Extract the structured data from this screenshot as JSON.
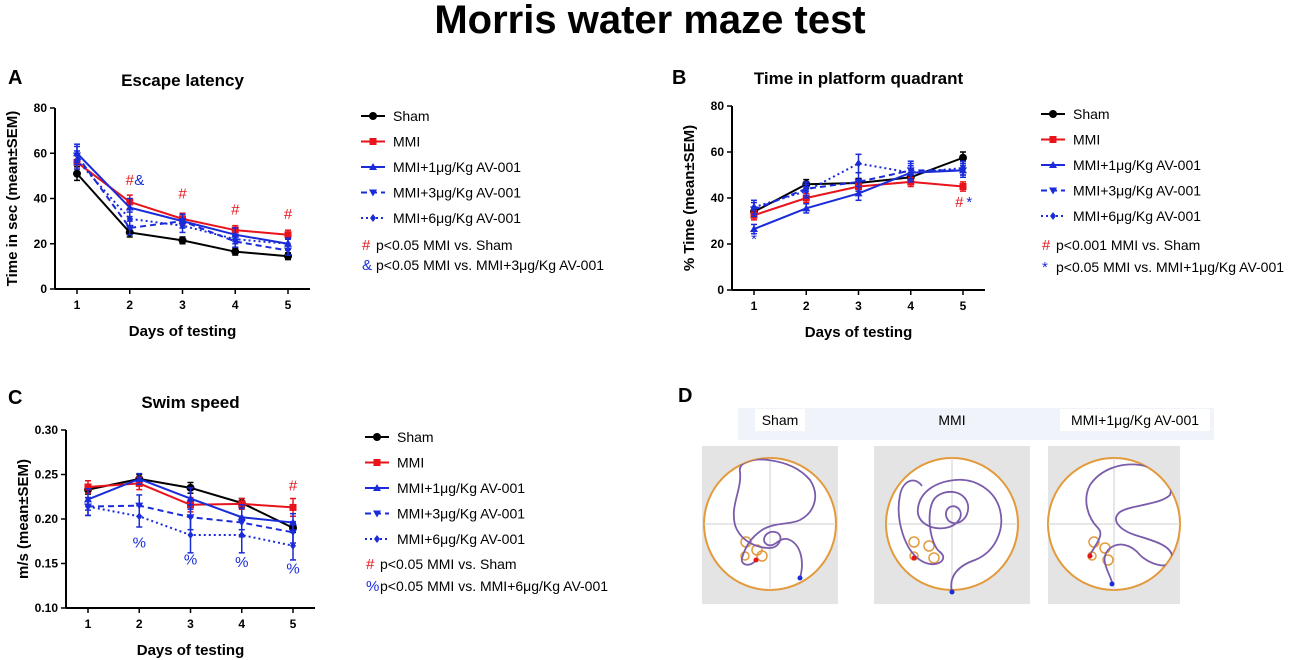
{
  "figure_title": "Morris water maze test",
  "colors": {
    "sham": "#000000",
    "mmi": "#e8131b",
    "av": "#1a2bd9",
    "maze_ring": "#e39a3c",
    "path": "#7b5cab"
  },
  "legend_entries": [
    "Sham",
    "MMI",
    "MMI+1μg/Kg AV-001",
    "MMI+3μg/Kg AV-001",
    "MMI+6μg/Kg AV-001"
  ],
  "chart_data": [
    {
      "panel": "A",
      "type": "line",
      "title": "Escape latency",
      "xlabel": "Days of testing",
      "ylabel": "Time in sec (mean±SEM)",
      "x": [
        1,
        2,
        3,
        4,
        5
      ],
      "ylim": [
        0,
        80
      ],
      "yticks": [
        0,
        20,
        40,
        60,
        80
      ],
      "series": [
        {
          "name": "Sham",
          "values": [
            51,
            25,
            21.5,
            16.5,
            14.5
          ],
          "err": [
            3,
            2,
            1.5,
            1.5,
            1.5
          ]
        },
        {
          "name": "MMI",
          "values": [
            56,
            38.5,
            31,
            26,
            24
          ],
          "err": [
            3,
            3,
            2.5,
            2,
            2
          ]
        },
        {
          "name": "MMI+1μg/Kg AV-001",
          "values": [
            60,
            36,
            30,
            24,
            20
          ],
          "err": [
            4,
            4,
            3,
            3,
            2.5
          ]
        },
        {
          "name": "MMI+3μg/Kg AV-001",
          "values": [
            59,
            27,
            30,
            21,
            17
          ],
          "err": [
            4,
            3,
            3,
            2.5,
            2
          ]
        },
        {
          "name": "MMI+6μg/Kg AV-001",
          "values": [
            57,
            31,
            28,
            22,
            20
          ],
          "err": [
            4,
            3,
            3,
            2,
            2
          ]
        }
      ],
      "significance_marks": [
        {
          "symbol": "#",
          "x": 2,
          "y": 46,
          "color": "mmi"
        },
        {
          "symbol": "&",
          "x": 2.18,
          "y": 46,
          "color": "av"
        },
        {
          "symbol": "#",
          "x": 3,
          "y": 40,
          "color": "mmi"
        },
        {
          "symbol": "#",
          "x": 4,
          "y": 33,
          "color": "mmi"
        },
        {
          "symbol": "#",
          "x": 5,
          "y": 31,
          "color": "mmi"
        }
      ],
      "notes": [
        {
          "symbol": "#",
          "text": "p<0.05 MMI vs. Sham",
          "color": "mmi"
        },
        {
          "symbol": "&",
          "text": "p<0.05 MMI vs. MMI+3μg/Kg AV-001",
          "color": "av"
        }
      ]
    },
    {
      "panel": "B",
      "type": "line",
      "title": "Time in platform quadrant",
      "xlabel": "Days of testing",
      "ylabel": "% Time (mean±SEM)",
      "x": [
        1,
        2,
        3,
        4,
        5
      ],
      "ylim": [
        0,
        80
      ],
      "yticks": [
        0,
        20,
        40,
        60,
        80
      ],
      "series": [
        {
          "name": "Sham",
          "values": [
            34,
            46,
            46.5,
            49,
            57.5
          ],
          "err": [
            2,
            2,
            2,
            2,
            2.5
          ]
        },
        {
          "name": "MMI",
          "values": [
            32.5,
            40,
            45,
            47,
            45
          ],
          "err": [
            2,
            2,
            2,
            2,
            2
          ]
        },
        {
          "name": "MMI+1μg/Kg AV-001",
          "values": [
            26.5,
            35.5,
            42,
            51,
            52
          ],
          "err": [
            2,
            2,
            3,
            3,
            2
          ]
        },
        {
          "name": "MMI+3μg/Kg AV-001",
          "values": [
            35,
            44,
            47,
            52,
            52
          ],
          "err": [
            3,
            3,
            4,
            4,
            3
          ]
        },
        {
          "name": "MMI+6μg/Kg AV-001",
          "values": [
            36,
            43,
            55,
            51,
            53
          ],
          "err": [
            3,
            3,
            4,
            4,
            3
          ]
        }
      ],
      "significance_marks": [
        {
          "symbol": "*",
          "x": 1,
          "y": 20,
          "color": "av"
        },
        {
          "symbol": "#",
          "x": 4.93,
          "y": 36,
          "color": "mmi"
        },
        {
          "symbol": "*",
          "x": 5.12,
          "y": 36,
          "color": "av"
        }
      ],
      "notes": [
        {
          "symbol": "#",
          "text": "p<0.001 MMI vs. Sham",
          "color": "mmi"
        },
        {
          "symbol": "*",
          "text": "p<0.05 MMI vs. MMI+1μg/Kg AV-001",
          "color": "av"
        }
      ]
    },
    {
      "panel": "C",
      "type": "line",
      "title": "Swim speed",
      "xlabel": "Days of testing",
      "ylabel": "m/s (mean±SEM)",
      "x": [
        1,
        2,
        3,
        4,
        5
      ],
      "ylim": [
        0.1,
        0.3
      ],
      "yticks": [
        0.1,
        0.15,
        0.2,
        0.25,
        0.3
      ],
      "series": [
        {
          "name": "Sham",
          "values": [
            0.233,
            0.245,
            0.235,
            0.218,
            0.19
          ],
          "err": [
            0.005,
            0.005,
            0.006,
            0.005,
            0.005
          ]
        },
        {
          "name": "MMI",
          "values": [
            0.236,
            0.24,
            0.216,
            0.217,
            0.213
          ],
          "err": [
            0.007,
            0.007,
            0.008,
            0.006,
            0.01
          ]
        },
        {
          "name": "MMI+1μg/Kg AV-001",
          "values": [
            0.222,
            0.245,
            0.223,
            0.202,
            0.196
          ],
          "err": [
            0.012,
            0.006,
            0.012,
            0.014,
            0.01
          ]
        },
        {
          "name": "MMI+3μg/Kg AV-001",
          "values": [
            0.214,
            0.215,
            0.202,
            0.196,
            0.185
          ],
          "err": [
            0.01,
            0.012,
            0.014,
            0.016,
            0.012
          ]
        },
        {
          "name": "MMI+6μg/Kg AV-001",
          "values": [
            0.214,
            0.203,
            0.182,
            0.182,
            0.17
          ],
          "err": [
            0.01,
            0.012,
            0.02,
            0.02,
            0.016
          ]
        }
      ],
      "significance_marks": [
        {
          "symbol": "#",
          "x": 5,
          "y": 0.232,
          "color": "mmi"
        },
        {
          "symbol": "%",
          "x": 2,
          "y": 0.168,
          "color": "av"
        },
        {
          "symbol": "%",
          "x": 3,
          "y": 0.149,
          "color": "av"
        },
        {
          "symbol": "%",
          "x": 4,
          "y": 0.146,
          "color": "av"
        },
        {
          "symbol": "%",
          "x": 5,
          "y": 0.139,
          "color": "av"
        }
      ],
      "notes": [
        {
          "symbol": "#",
          "text": "p<0.05 MMI vs. Sham",
          "color": "mmi"
        },
        {
          "symbol": "%",
          "text": "p<0.05 MMI vs. MMI+6μg/Kg AV-001",
          "color": "av"
        }
      ]
    }
  ],
  "panel_d": {
    "label": "D",
    "maze_labels": [
      "Sham",
      "MMI",
      "MMI+1μg/Kg AV-001"
    ]
  }
}
